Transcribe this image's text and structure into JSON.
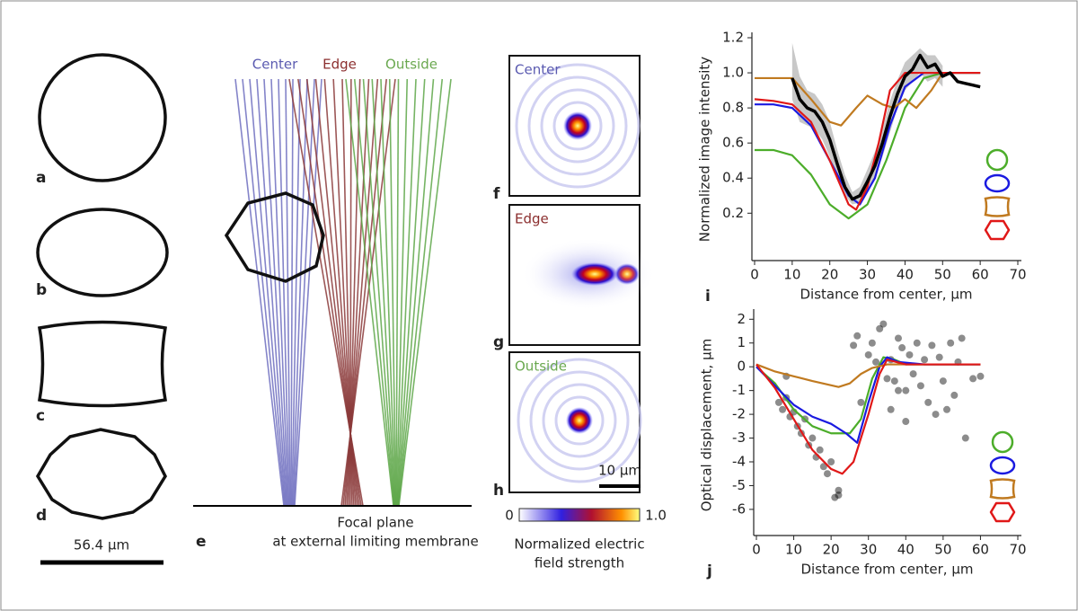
{
  "figure": {
    "panel_letters": [
      "a",
      "b",
      "c",
      "d",
      "e",
      "f",
      "g",
      "h"
    ],
    "scale_bar_left": "56.4 µm",
    "ray_labels": [
      "Center",
      "Edge",
      "Outside"
    ],
    "focal_plane": [
      "Focal plane",
      "at external limiting membrane"
    ],
    "psf_labels": [
      "Center",
      "Edge",
      "Outside"
    ],
    "psf_scale": "10 µm",
    "colorbar_ticks": [
      "0",
      "1.0"
    ],
    "colorbar_title": [
      "Normalized electric",
      "field strength"
    ]
  },
  "chart_data": [
    {
      "type": "line",
      "panel": "i",
      "x_label": "Distance from center, µm",
      "y_label": "Normalized image intensity",
      "xlim": [
        0,
        70
      ],
      "xticks": [
        0,
        10,
        20,
        30,
        40,
        50,
        60,
        70
      ],
      "ylim": [
        -0.07,
        1.2
      ],
      "yticks": [
        0.2,
        0.4,
        0.6,
        0.8,
        {
          "value": 1,
          "label": "1.0"
        },
        1.2
      ],
      "band": {
        "color": "#c8c8c8",
        "x": [
          10,
          12,
          14,
          16,
          18,
          20,
          22,
          24,
          26,
          28,
          30,
          32,
          34,
          36,
          38,
          40,
          42,
          44,
          46,
          48,
          50
        ],
        "lower": [
          0.85,
          0.72,
          0.7,
          0.68,
          0.62,
          0.52,
          0.4,
          0.3,
          0.25,
          0.26,
          0.32,
          0.4,
          0.52,
          0.66,
          0.8,
          0.9,
          0.95,
          1.0,
          0.95,
          0.97,
          0.92
        ],
        "upper": [
          1.17,
          0.98,
          0.9,
          0.88,
          0.82,
          0.72,
          0.56,
          0.42,
          0.32,
          0.35,
          0.45,
          0.55,
          0.68,
          0.84,
          0.96,
          1.06,
          1.1,
          1.14,
          1.1,
          1.1,
          1.04
        ]
      },
      "series": [
        {
          "color": "#4cad2a",
          "x": [
            0,
            5,
            10,
            15,
            20,
            25,
            30,
            35,
            40,
            45,
            50,
            55,
            60
          ],
          "values": [
            0.56,
            0.56,
            0.53,
            0.42,
            0.25,
            0.17,
            0.25,
            0.5,
            0.8,
            0.97,
            1.0,
            1.0,
            1.0
          ]
        },
        {
          "color": "#1a1ae0",
          "x": [
            0,
            5,
            10,
            15,
            20,
            25,
            28,
            32,
            36,
            40,
            45,
            50,
            60
          ],
          "values": [
            0.82,
            0.82,
            0.8,
            0.7,
            0.5,
            0.3,
            0.25,
            0.4,
            0.7,
            0.92,
            1.0,
            1.0,
            1.0
          ]
        },
        {
          "color": "#c07a20",
          "x": [
            0,
            10,
            15,
            20,
            23,
            27,
            30,
            34,
            37,
            40,
            43,
            47,
            50,
            60
          ],
          "values": [
            0.97,
            0.97,
            0.85,
            0.72,
            0.7,
            0.8,
            0.87,
            0.82,
            0.8,
            0.85,
            0.8,
            0.9,
            1.0,
            1.0
          ]
        },
        {
          "color": "#e01818",
          "x": [
            0,
            5,
            10,
            15,
            20,
            25,
            27,
            30,
            33,
            36,
            40,
            50,
            60
          ],
          "values": [
            0.85,
            0.84,
            0.82,
            0.72,
            0.5,
            0.25,
            0.22,
            0.35,
            0.6,
            0.9,
            1.0,
            1.0,
            1.0
          ]
        },
        {
          "color": "#000000",
          "line_width": 3.5,
          "x": [
            10,
            12,
            14,
            16,
            18,
            20,
            22,
            24,
            26,
            28,
            30,
            32,
            34,
            36,
            38,
            40,
            42,
            44,
            46,
            48,
            50,
            52,
            54,
            56,
            58,
            60
          ],
          "values": [
            0.97,
            0.85,
            0.8,
            0.78,
            0.72,
            0.62,
            0.48,
            0.35,
            0.28,
            0.3,
            0.38,
            0.47,
            0.6,
            0.75,
            0.88,
            0.98,
            1.02,
            1.1,
            1.03,
            1.05,
            0.98,
            1.0,
            0.95,
            0.94,
            0.93,
            0.92
          ]
        }
      ]
    },
    {
      "type": "line",
      "panel": "j",
      "x_label": "Distance from center, µm",
      "y_label": "Optical displacement, µm",
      "xlim": [
        0,
        70
      ],
      "xticks": [
        0,
        10,
        20,
        30,
        40,
        50,
        60,
        70
      ],
      "ylim": [
        -7.1,
        2.2
      ],
      "yticks": [
        2,
        1,
        0,
        -1,
        -2,
        -3,
        -4,
        -5,
        -6
      ],
      "points": {
        "color": "rgba(0,0,0,0.45)",
        "x": [
          6,
          7,
          8,
          9,
          10,
          11,
          12,
          13,
          14,
          15,
          16,
          17,
          18,
          19,
          20,
          21,
          22,
          22,
          8,
          26,
          27,
          28,
          30,
          31,
          32,
          33,
          34,
          35,
          36,
          37,
          38,
          39,
          40,
          41,
          42,
          43,
          44,
          45,
          46,
          47,
          48,
          49,
          50,
          51,
          52,
          53,
          54,
          55,
          56,
          58,
          60,
          36,
          38,
          40
        ],
        "values": [
          -1.5,
          -1.8,
          -1.3,
          -2.1,
          -1.9,
          -2.5,
          -2.8,
          -2.2,
          -3.3,
          -3.0,
          -3.8,
          -3.5,
          -4.2,
          -4.5,
          -4.0,
          -5.5,
          -5.2,
          -5.4,
          -0.4,
          0.9,
          1.3,
          -1.5,
          0.5,
          1.0,
          0.2,
          1.6,
          1.8,
          -0.5,
          0.3,
          -0.6,
          1.2,
          0.8,
          -1.0,
          0.5,
          -0.3,
          1.0,
          -0.8,
          0.3,
          -1.5,
          0.9,
          -2.0,
          0.4,
          -0.6,
          -1.8,
          1.0,
          -1.2,
          0.2,
          1.2,
          -3.0,
          -0.5,
          -0.4,
          -1.8,
          -1.0,
          -2.3
        ]
      },
      "series": [
        {
          "color": "#4cad2a",
          "x": [
            0,
            5,
            10,
            15,
            20,
            25,
            28,
            31,
            34,
            37,
            40,
            50,
            60
          ],
          "values": [
            0,
            -0.7,
            -1.8,
            -2.5,
            -2.8,
            -2.8,
            -2.2,
            -0.5,
            0.4,
            0.3,
            0.1,
            0.1,
            0.1
          ]
        },
        {
          "color": "#1a1ae0",
          "x": [
            0,
            5,
            10,
            15,
            20,
            24,
            27,
            30,
            33,
            35,
            38,
            45,
            60
          ],
          "values": [
            0,
            -0.8,
            -1.6,
            -2.1,
            -2.4,
            -2.8,
            -3.2,
            -1.5,
            0,
            0.4,
            0.2,
            0.1,
            0.1
          ]
        },
        {
          "color": "#c07a20",
          "x": [
            0,
            5,
            10,
            15,
            22,
            25,
            28,
            31,
            35,
            45,
            60
          ],
          "values": [
            0.1,
            -0.2,
            -0.4,
            -0.6,
            -0.85,
            -0.7,
            -0.3,
            -0.05,
            0.1,
            0.1,
            0.1
          ]
        },
        {
          "color": "#e01818",
          "x": [
            0,
            5,
            10,
            15,
            20,
            23,
            26,
            30,
            33,
            35,
            40,
            60
          ],
          "values": [
            0.1,
            -0.9,
            -2.2,
            -3.5,
            -4.3,
            -4.5,
            -4.0,
            -2.0,
            -0.3,
            0.3,
            0.1,
            0.1
          ]
        }
      ]
    }
  ]
}
